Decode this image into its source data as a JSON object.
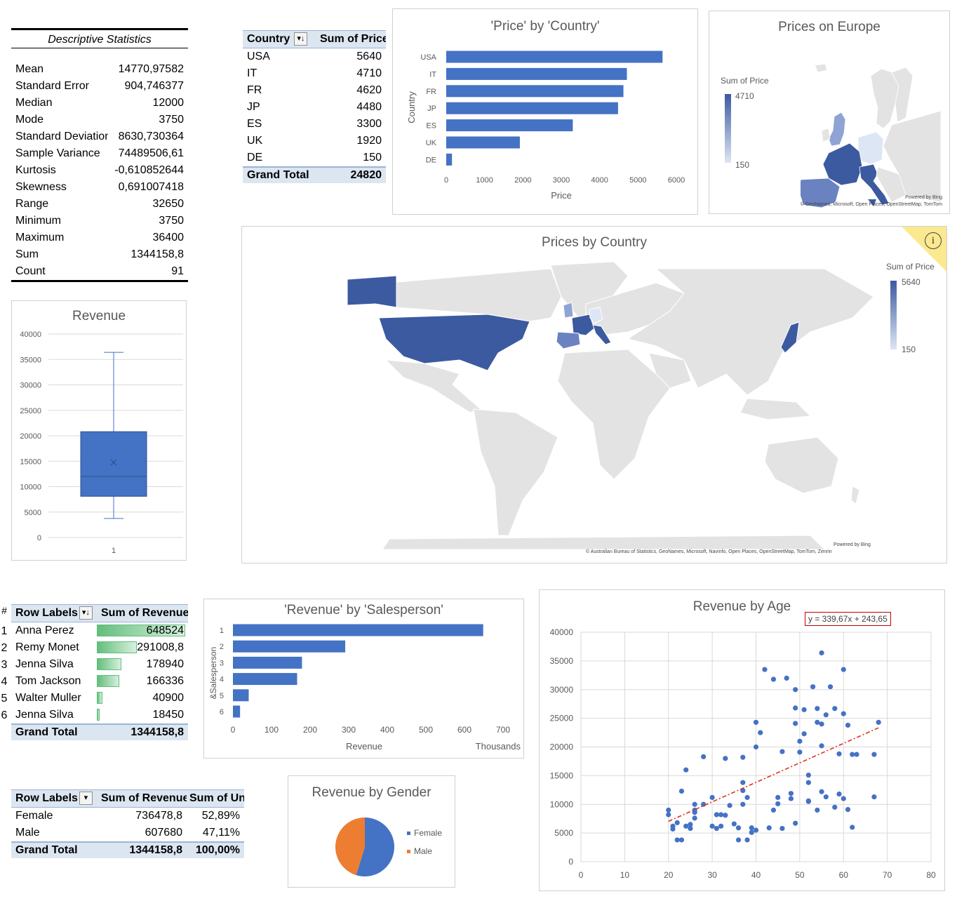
{
  "stats": {
    "title": "Descriptive Statistics",
    "rows": [
      {
        "label": "Mean",
        "value": "14770,97582"
      },
      {
        "label": "Standard Error",
        "value": "904,746377"
      },
      {
        "label": "Median",
        "value": "12000"
      },
      {
        "label": "Mode",
        "value": "3750"
      },
      {
        "label": "Standard Deviation",
        "value": "8630,730364"
      },
      {
        "label": "Sample Variance",
        "value": "74489506,61"
      },
      {
        "label": "Kurtosis",
        "value": "-0,610852644"
      },
      {
        "label": "Skewness",
        "value": "0,691007418"
      },
      {
        "label": "Range",
        "value": "32650"
      },
      {
        "label": "Minimum",
        "value": "3750"
      },
      {
        "label": "Maximum",
        "value": "36400"
      },
      {
        "label": "Sum",
        "value": "1344158,8"
      },
      {
        "label": "Count",
        "value": "91"
      }
    ]
  },
  "pivot_country": {
    "col1": "Country",
    "col2": "Sum of Price",
    "filter_glyph": "▾↓",
    "rows": [
      {
        "label": "USA",
        "value": "5640"
      },
      {
        "label": "IT",
        "value": "4710"
      },
      {
        "label": "FR",
        "value": "4620"
      },
      {
        "label": "JP",
        "value": "4480"
      },
      {
        "label": "ES",
        "value": "3300"
      },
      {
        "label": "UK",
        "value": "1920"
      },
      {
        "label": "DE",
        "value": "150"
      }
    ],
    "total_label": "Grand Total",
    "total_value": "24820"
  },
  "pivot_salesperson": {
    "hash": "#",
    "col1": "Row Labels",
    "col2": "Sum of Revenue",
    "filter_glyph": "▾↓",
    "rows": [
      {
        "num": "1",
        "label": "Anna Perez",
        "value": "648524",
        "bar": 1.0
      },
      {
        "num": "2",
        "label": "Remy Monet",
        "value": "291008,8",
        "bar": 0.449
      },
      {
        "num": "3",
        "label": "Jenna Silva",
        "value": "178940",
        "bar": 0.276
      },
      {
        "num": "4",
        "label": "Tom Jackson",
        "value": "166336",
        "bar": 0.256
      },
      {
        "num": "5",
        "label": "Walter Muller",
        "value": "40900",
        "bar": 0.063
      },
      {
        "num": "6",
        "label": "Jenna    Silva",
        "value": "18450",
        "bar": 0.028
      }
    ],
    "total_label": "Grand Total",
    "total_value": "1344158,8"
  },
  "pivot_gender": {
    "col1": "Row Labels",
    "col2": "Sum of Revenue",
    "col3": "Sum of Units",
    "filter_glyph": "▾",
    "rows": [
      {
        "label": "Female",
        "value": "736478,8",
        "units": "52,89%"
      },
      {
        "label": "Male",
        "value": "607680",
        "units": "47,11%"
      }
    ],
    "total_label": "Grand Total",
    "total_value": "1344158,8",
    "total_units": "100,00%"
  },
  "europe_map": {
    "title": "Prices on Europe",
    "legend_title": "Sum of Price",
    "legend_max": "4710",
    "legend_min": "150",
    "credit1": "Powered by Bing",
    "credit2": "© GeoNames, Microsoft, Open Places, OpenStreetMap, TomTom"
  },
  "world_map": {
    "title": "Prices by Country",
    "legend_title": "Sum of Price",
    "legend_max": "5640",
    "legend_min": "150",
    "info_icon": "i",
    "credit1": "Powered by Bing",
    "credit2": "© Australian Bureau of Statistics, GeoNames, Microsoft, Navinfo, Open Places, OpenStreetMap, TomTom, Zenrin"
  },
  "colors": {
    "accent": "#4472c4",
    "orange": "#ed7d31",
    "trend": "#e0301e",
    "map_gray": "#e3e3e3",
    "header_fill": "#dce6f1"
  },
  "chart_data": [
    {
      "id": "price_by_country",
      "type": "bar",
      "orientation": "horizontal",
      "title": "'Price' by 'Country'",
      "xlabel": "Price",
      "ylabel": "Country",
      "categories": [
        "USA",
        "IT",
        "FR",
        "JP",
        "ES",
        "UK",
        "DE"
      ],
      "values": [
        5640,
        4710,
        4620,
        4480,
        3300,
        1920,
        150
      ],
      "xlim": [
        0,
        6000
      ],
      "xticks": [
        "0",
        "1000",
        "2000",
        "3000",
        "4000",
        "5000",
        "6000"
      ],
      "grid": false
    },
    {
      "id": "revenue_box",
      "type": "box",
      "title": "Revenue",
      "categories": [
        "1"
      ],
      "whisker_low": 3750,
      "q1": 8100,
      "median": 12000,
      "q3": 20800,
      "whisker_high": 36400,
      "mean": 14771,
      "ylim": [
        0,
        40000
      ],
      "yticks": [
        "0",
        "5000",
        "10000",
        "15000",
        "20000",
        "25000",
        "30000",
        "35000",
        "40000"
      ],
      "grid": true
    },
    {
      "id": "revenue_by_salesperson",
      "type": "bar",
      "orientation": "horizontal",
      "title": "'Revenue' by 'Salesperson'",
      "xlabel": "Revenue",
      "ylabel": "&Salesperson",
      "xunit": "Thousands",
      "categories": [
        "1",
        "2",
        "3",
        "4",
        "5",
        "6"
      ],
      "values": [
        648.524,
        291.0088,
        178.94,
        166.336,
        40.9,
        18.45
      ],
      "xlim": [
        0,
        700
      ],
      "xticks": [
        "0",
        "100",
        "200",
        "300",
        "400",
        "500",
        "600",
        "700"
      ],
      "grid": false
    },
    {
      "id": "revenue_by_gender",
      "type": "pie",
      "title": "Revenue by Gender",
      "labels": [
        "Female",
        "Male"
      ],
      "values": [
        736478.8,
        607680
      ],
      "colors": [
        "#4472c4",
        "#ed7d31"
      ],
      "legend": "right"
    },
    {
      "id": "revenue_by_age",
      "type": "scatter",
      "title": "Revenue by Age",
      "trendline_label": "y = 339,67x + 243,65",
      "trend": {
        "slope": 339.67,
        "intercept": 243.65,
        "x_from": 20,
        "x_to": 68
      },
      "xlim": [
        0,
        80
      ],
      "ylim": [
        0,
        40000
      ],
      "xticks": [
        "0",
        "10",
        "20",
        "30",
        "40",
        "50",
        "60",
        "70",
        "80"
      ],
      "yticks": [
        "0",
        "5000",
        "10000",
        "15000",
        "20000",
        "25000",
        "30000",
        "35000",
        "40000"
      ],
      "grid": true,
      "points": [
        [
          20,
          9000
        ],
        [
          20,
          8200
        ],
        [
          21,
          6200
        ],
        [
          21,
          5700
        ],
        [
          22,
          3800
        ],
        [
          22,
          6800
        ],
        [
          23,
          3800
        ],
        [
          23,
          12300
        ],
        [
          24,
          16000
        ],
        [
          24,
          6200
        ],
        [
          25,
          6500
        ],
        [
          25,
          5800
        ],
        [
          26,
          10000
        ],
        [
          26,
          8600
        ],
        [
          26,
          7600
        ],
        [
          26,
          9000
        ],
        [
          28,
          18300
        ],
        [
          28,
          10000
        ],
        [
          30,
          11200
        ],
        [
          30,
          6200
        ],
        [
          31,
          8200
        ],
        [
          31,
          5800
        ],
        [
          32,
          8200
        ],
        [
          32,
          6200
        ],
        [
          33,
          8100
        ],
        [
          33,
          18000
        ],
        [
          34,
          9800
        ],
        [
          35,
          6600
        ],
        [
          36,
          3800
        ],
        [
          36,
          5900
        ],
        [
          37,
          18200
        ],
        [
          37,
          13800
        ],
        [
          37,
          12400
        ],
        [
          37,
          10000
        ],
        [
          38,
          11200
        ],
        [
          38,
          3800
        ],
        [
          39,
          5900
        ],
        [
          39,
          5100
        ],
        [
          40,
          20000
        ],
        [
          40,
          24300
        ],
        [
          41,
          22500
        ],
        [
          42,
          33500
        ],
        [
          43,
          5900
        ],
        [
          44,
          31800
        ],
        [
          44,
          9000
        ],
        [
          45,
          11200
        ],
        [
          45,
          10100
        ],
        [
          46,
          5800
        ],
        [
          46,
          19200
        ],
        [
          47,
          32000
        ],
        [
          48,
          11900
        ],
        [
          48,
          11000
        ],
        [
          49,
          26800
        ],
        [
          49,
          24100
        ],
        [
          49,
          30000
        ],
        [
          49,
          6700
        ],
        [
          50,
          21000
        ],
        [
          50,
          19100
        ],
        [
          51,
          26500
        ],
        [
          51,
          22300
        ],
        [
          52,
          10600
        ],
        [
          52,
          15100
        ],
        [
          52,
          10500
        ],
        [
          53,
          30500
        ],
        [
          54,
          24300
        ],
        [
          54,
          26700
        ],
        [
          55,
          24000
        ],
        [
          55,
          36400
        ],
        [
          55,
          12200
        ],
        [
          55,
          20200
        ],
        [
          56,
          11300
        ],
        [
          56,
          25600
        ],
        [
          57,
          30500
        ],
        [
          58,
          9500
        ],
        [
          58,
          26700
        ],
        [
          59,
          18800
        ],
        [
          59,
          11800
        ],
        [
          60,
          25800
        ],
        [
          60,
          11000
        ],
        [
          60,
          33500
        ],
        [
          61,
          9100
        ],
        [
          61,
          23800
        ],
        [
          62,
          18700
        ],
        [
          62,
          6000
        ],
        [
          63,
          18700
        ],
        [
          67,
          18700
        ],
        [
          67,
          11300
        ],
        [
          68,
          24300
        ],
        [
          40,
          5500
        ],
        [
          52,
          13800
        ],
        [
          54,
          9000
        ]
      ]
    }
  ]
}
